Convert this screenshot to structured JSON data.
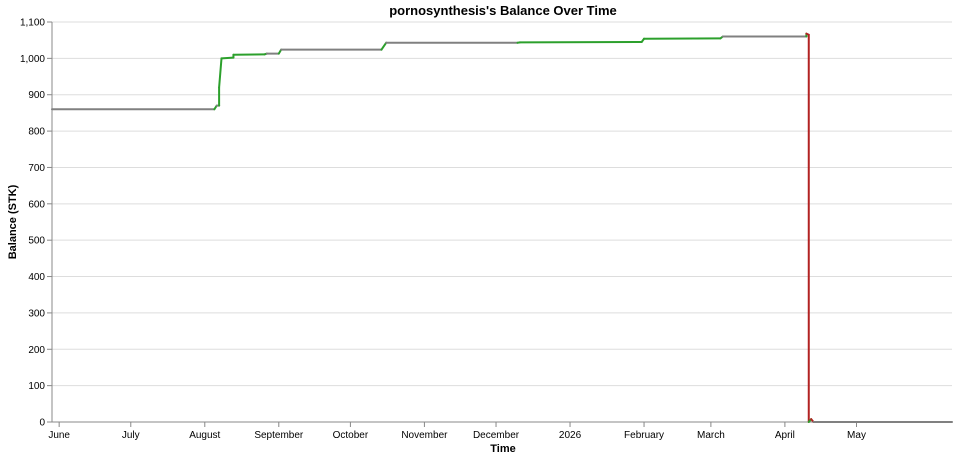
{
  "chart_data": {
    "type": "line",
    "title": "pornosynthesis's Balance Over Time",
    "xlabel": "Time",
    "ylabel": "Balance (STK)",
    "ylim": [
      0,
      1100
    ],
    "xlim": [
      "2025-05-29",
      "2026-06-10"
    ],
    "grid": true,
    "y_ticks": [
      {
        "value": 0,
        "label": "0"
      },
      {
        "value": 100,
        "label": "100"
      },
      {
        "value": 200,
        "label": "200"
      },
      {
        "value": 300,
        "label": "300"
      },
      {
        "value": 400,
        "label": "400"
      },
      {
        "value": 500,
        "label": "500"
      },
      {
        "value": 600,
        "label": "600"
      },
      {
        "value": 700,
        "label": "700"
      },
      {
        "value": 800,
        "label": "800"
      },
      {
        "value": 900,
        "label": "900"
      },
      {
        "value": 1000,
        "label": "1,000"
      },
      {
        "value": 1100,
        "label": "1,100"
      }
    ],
    "x_ticks": [
      {
        "date": "2025-06-01",
        "label": "June"
      },
      {
        "date": "2025-07-01",
        "label": "July"
      },
      {
        "date": "2025-08-01",
        "label": "August"
      },
      {
        "date": "2025-09-01",
        "label": "September"
      },
      {
        "date": "2025-10-01",
        "label": "October"
      },
      {
        "date": "2025-11-01",
        "label": "November"
      },
      {
        "date": "2025-12-01",
        "label": "December"
      },
      {
        "date": "2026-01-01",
        "label": "2026"
      },
      {
        "date": "2026-02-01",
        "label": "February"
      },
      {
        "date": "2026-03-01",
        "label": "March"
      },
      {
        "date": "2026-04-01",
        "label": "April"
      },
      {
        "date": "2026-05-01",
        "label": "May"
      }
    ],
    "colors": {
      "line": "#808080",
      "increase": "#2ca02c",
      "decrease": "#b22222"
    },
    "points": [
      {
        "x": "2025-05-29",
        "y": 860
      },
      {
        "x": "2025-08-05",
        "y": 860
      },
      {
        "x": "2025-08-06",
        "y": 870
      },
      {
        "x": "2025-08-07",
        "y": 870
      },
      {
        "x": "2025-08-07",
        "y": 920
      },
      {
        "x": "2025-08-08",
        "y": 1000
      },
      {
        "x": "2025-08-13",
        "y": 1002
      },
      {
        "x": "2025-08-13",
        "y": 1010
      },
      {
        "x": "2025-08-26",
        "y": 1011
      },
      {
        "x": "2025-08-27",
        "y": 1013
      },
      {
        "x": "2025-09-01",
        "y": 1013
      },
      {
        "x": "2025-09-02",
        "y": 1024
      },
      {
        "x": "2025-10-14",
        "y": 1024
      },
      {
        "x": "2025-10-16",
        "y": 1043
      },
      {
        "x": "2025-12-10",
        "y": 1043
      },
      {
        "x": "2025-12-11",
        "y": 1044
      },
      {
        "x": "2026-01-31",
        "y": 1045
      },
      {
        "x": "2026-02-01",
        "y": 1054
      },
      {
        "x": "2026-03-05",
        "y": 1055
      },
      {
        "x": "2026-03-06",
        "y": 1060
      },
      {
        "x": "2026-04-10",
        "y": 1060
      },
      {
        "x": "2026-04-10",
        "y": 1068
      },
      {
        "x": "2026-04-11",
        "y": 1065
      },
      {
        "x": "2026-04-11",
        "y": 0
      },
      {
        "x": "2026-04-12",
        "y": 8
      },
      {
        "x": "2026-04-13",
        "y": 0
      },
      {
        "x": "2026-06-10",
        "y": 0
      }
    ]
  }
}
